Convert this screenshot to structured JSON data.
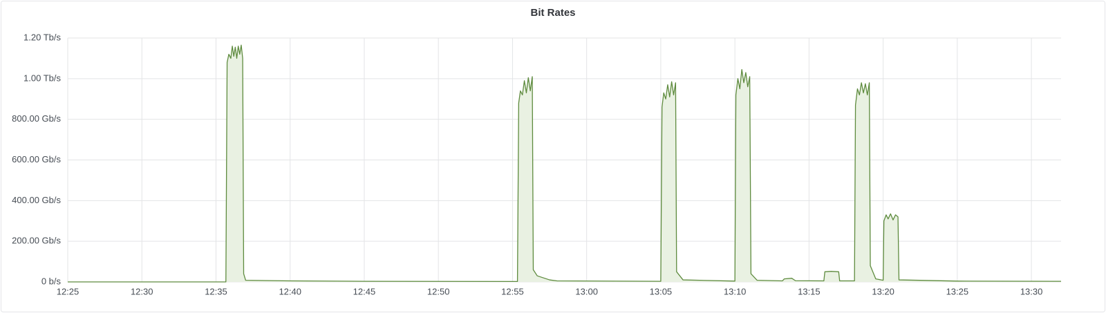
{
  "chart_data": {
    "type": "area",
    "title": "Bit Rates",
    "color": "#5e8b3e",
    "fill": "#e9f1e2",
    "grid": true,
    "xlim": [
      "12:25",
      "13:32"
    ],
    "xticks": [
      "12:25",
      "12:30",
      "12:35",
      "12:40",
      "12:45",
      "12:50",
      "12:55",
      "13:00",
      "13:05",
      "13:10",
      "13:15",
      "13:20",
      "13:25",
      "13:30"
    ],
    "ylim": [
      0,
      1200
    ],
    "yticks": [
      {
        "value": 0,
        "label": "0 b/s"
      },
      {
        "value": 200,
        "label": "200.00 Gb/s"
      },
      {
        "value": 400,
        "label": "400.00 Gb/s"
      },
      {
        "value": 600,
        "label": "600.00 Gb/s"
      },
      {
        "value": 800,
        "label": "800.00 Gb/s"
      },
      {
        "value": 1000,
        "label": "1.00 Tb/s"
      },
      {
        "value": 1200,
        "label": "1.20 Tb/s"
      }
    ],
    "x": [
      "12:25:00",
      "12:35:40",
      "12:35:45",
      "12:35:52",
      "12:36:00",
      "12:36:06",
      "12:36:12",
      "12:36:18",
      "12:36:24",
      "12:36:30",
      "12:36:36",
      "12:36:42",
      "12:36:48",
      "12:36:52",
      "12:37:00",
      "12:40:00",
      "12:45:00",
      "12:55:20",
      "12:55:25",
      "12:55:32",
      "12:55:40",
      "12:55:48",
      "12:55:56",
      "12:56:04",
      "12:56:12",
      "12:56:20",
      "12:56:24",
      "12:56:40",
      "12:57:30",
      "12:58:00",
      "13:05:00",
      "13:05:05",
      "13:05:12",
      "13:05:20",
      "13:05:28",
      "13:05:36",
      "13:05:44",
      "13:05:52",
      "13:06:00",
      "13:06:04",
      "13:06:30",
      "13:10:00",
      "13:10:04",
      "13:10:12",
      "13:10:20",
      "13:10:28",
      "13:10:36",
      "13:10:44",
      "13:10:52",
      "13:11:00",
      "13:11:05",
      "13:11:30",
      "13:13:12",
      "13:13:20",
      "13:13:50",
      "13:14:05",
      "13:16:00",
      "13:16:04",
      "13:16:30",
      "13:17:00",
      "13:17:04",
      "13:18:04",
      "13:18:08",
      "13:18:16",
      "13:18:24",
      "13:18:32",
      "13:18:40",
      "13:18:48",
      "13:18:56",
      "13:19:04",
      "13:19:08",
      "13:19:30",
      "13:20:00",
      "13:20:03",
      "13:20:12",
      "13:20:20",
      "13:20:30",
      "13:20:40",
      "13:20:50",
      "13:21:00",
      "13:21:04",
      "13:25:00",
      "13:32:00"
    ],
    "values": [
      0,
      0,
      1080,
      1120,
      1100,
      1160,
      1110,
      1155,
      1100,
      1160,
      1120,
      1165,
      1100,
      40,
      8,
      5,
      3,
      2,
      880,
      940,
      920,
      990,
      930,
      1005,
      940,
      1010,
      60,
      30,
      10,
      5,
      3,
      860,
      930,
      900,
      970,
      910,
      985,
      920,
      980,
      50,
      10,
      4,
      920,
      1000,
      950,
      1045,
      980,
      1030,
      960,
      1010,
      40,
      8,
      5,
      15,
      18,
      6,
      5,
      50,
      52,
      50,
      5,
      5,
      870,
      950,
      920,
      980,
      930,
      975,
      920,
      980,
      80,
      15,
      8,
      300,
      330,
      310,
      335,
      305,
      330,
      320,
      10,
      4,
      3
    ]
  }
}
